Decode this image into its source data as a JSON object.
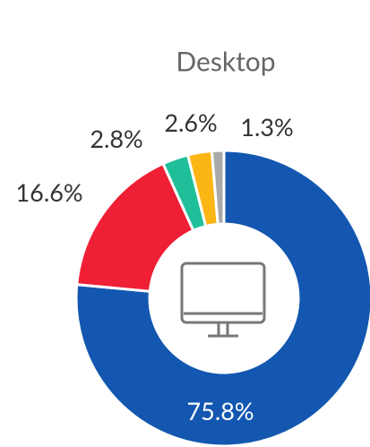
{
  "chart_data": {
    "type": "donut",
    "title": "Desktop",
    "categories": [
      null,
      null,
      null,
      null,
      null
    ],
    "values": [
      75.8,
      16.6,
      2.8,
      2.6,
      1.3
    ],
    "value_labels": [
      "75.8%",
      "16.6%",
      "2.8%",
      "2.6%",
      "1.3%"
    ],
    "colors": [
      "#1357b0",
      "#ef1f35",
      "#1fbf9a",
      "#fbb514",
      "#a9a9a9"
    ]
  }
}
